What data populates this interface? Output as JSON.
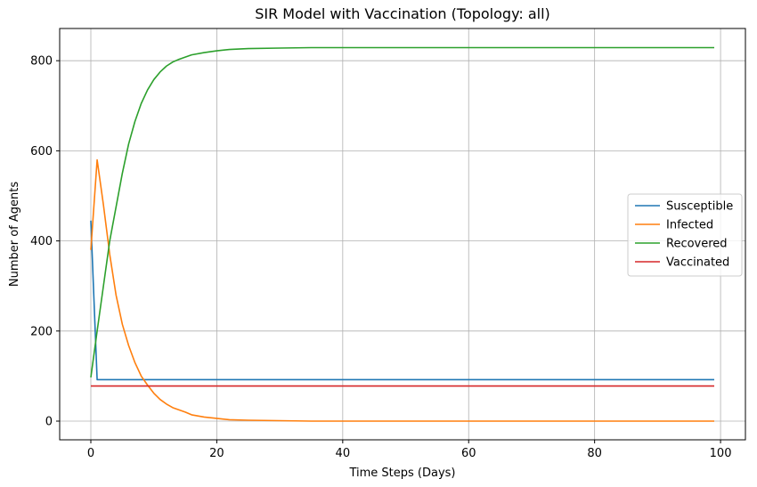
{
  "chart_data": {
    "type": "line",
    "title": "SIR Model with Vaccination (Topology: all)",
    "xlabel": "Time Steps (Days)",
    "ylabel": "Number of Agents",
    "xlim": [
      -4.95,
      103.95
    ],
    "ylim": [
      -41.5,
      871.5
    ],
    "xticks": [
      0,
      20,
      40,
      60,
      80,
      100
    ],
    "yticks": [
      0,
      200,
      400,
      600,
      800
    ],
    "grid": true,
    "legend_position": "center-right",
    "series": [
      {
        "name": "Susceptible",
        "color": "#1f77b4",
        "x": [
          0,
          1,
          99
        ],
        "y": [
          445,
          92,
          92
        ]
      },
      {
        "name": "Infected",
        "color": "#ff7f0e",
        "x": [
          0,
          1,
          2,
          3,
          4,
          5,
          6,
          7,
          8,
          9,
          10,
          11,
          12,
          13,
          14,
          15,
          16,
          18,
          20,
          22,
          25,
          30,
          35,
          40,
          99
        ],
        "y": [
          380,
          580,
          480,
          370,
          280,
          215,
          168,
          130,
          100,
          80,
          62,
          48,
          38,
          30,
          25,
          20,
          14,
          9,
          6,
          3,
          2,
          1,
          0,
          0,
          0
        ]
      },
      {
        "name": "Recovered",
        "color": "#2ca02c",
        "x": [
          0,
          1,
          2,
          3,
          4,
          5,
          6,
          7,
          8,
          9,
          10,
          11,
          12,
          13,
          14,
          15,
          16,
          18,
          20,
          22,
          25,
          30,
          35,
          40,
          99
        ],
        "y": [
          97,
          200,
          300,
          400,
          475,
          550,
          615,
          665,
          705,
          735,
          758,
          775,
          788,
          797,
          803,
          808,
          813,
          818,
          822,
          825,
          827,
          828,
          829,
          829,
          829
        ]
      },
      {
        "name": "Vaccinated",
        "color": "#d62728",
        "x": [
          0,
          99
        ],
        "y": [
          78,
          78
        ]
      }
    ]
  }
}
